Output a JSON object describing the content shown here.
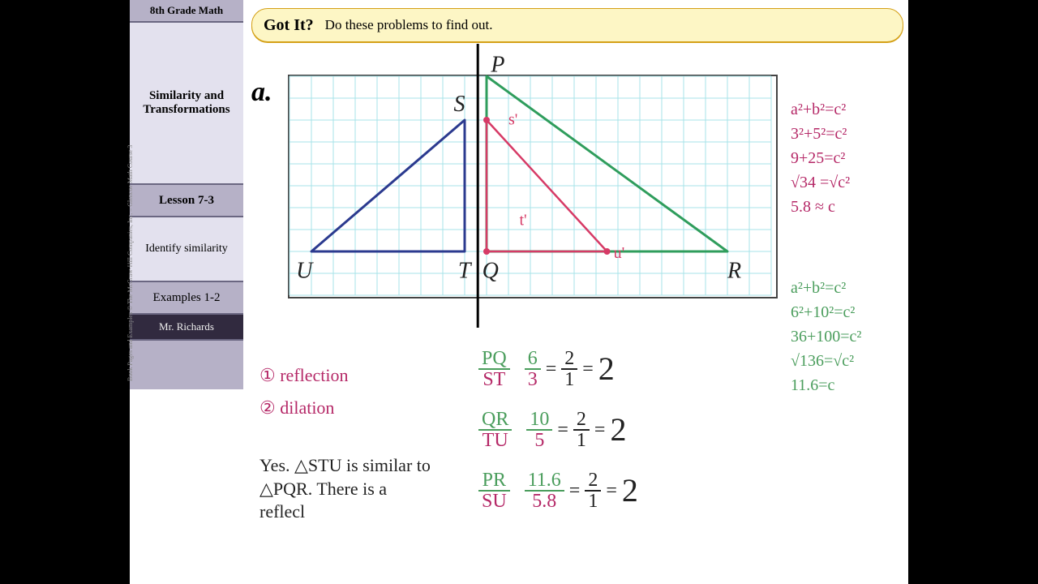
{
  "sidebar": {
    "title": "8th Grade Math",
    "topic": "Similarity and Transformations",
    "lesson": "Lesson 7-3",
    "objective": "Identify similarity",
    "examples": "Examples 1-2",
    "teacher": "Mr. Richards"
  },
  "copyright": "Book Pages and Examples © The McGraw-Hill Companies, Inc. – Glencoe Math Course 3",
  "banner": {
    "gotit": "Got It?",
    "prompt": "Do these problems to find out."
  },
  "problem_label": "a.",
  "grid": {
    "cols": 22,
    "rows": 10,
    "cell": 27,
    "grid_color": "#a7e3e9",
    "triangles": {
      "STU": {
        "color": "#2b3a8f",
        "width": 3,
        "points": [
          [
            8,
            8
          ],
          [
            8,
            2
          ],
          [
            1,
            8
          ]
        ],
        "labels": {
          "S": [
            7.5,
            1.6
          ],
          "T": [
            7.7,
            9.2
          ],
          "U": [
            0.3,
            9.2
          ]
        }
      },
      "PQR": {
        "color": "#2f9d5c",
        "width": 3,
        "points": [
          [
            9,
            0
          ],
          [
            9,
            8
          ],
          [
            20,
            8
          ]
        ],
        "labels": {
          "P": [
            9.2,
            -0.2
          ],
          "Q": [
            8.8,
            9.2
          ],
          "R": [
            20,
            9.2
          ]
        }
      },
      "prime": {
        "color": "#d63a66",
        "width": 2.5,
        "points": [
          [
            9,
            2
          ],
          [
            9,
            8
          ],
          [
            14.5,
            8
          ]
        ],
        "dots": [
          [
            9,
            2
          ],
          [
            9,
            8
          ],
          [
            14.5,
            8
          ]
        ],
        "labels": {
          "s'": [
            10,
            2.2
          ],
          "t'": [
            10.5,
            6.8
          ],
          "u'": [
            14.8,
            8.3
          ]
        }
      }
    },
    "reflection_line": {
      "x": 8.6,
      "extend": 40
    }
  },
  "annotations": {
    "step1": "① reflection",
    "step2": "② dilation",
    "answer": "Yes. △STU is similar to\n△PQR. There is a\nreflecl"
  },
  "ratios": {
    "r1": {
      "ln": "PQ",
      "ld": "ST",
      "vn": "6",
      "vd": "3",
      "sn": "2",
      "sd": "1"
    },
    "r2": {
      "ln": "QR",
      "ld": "TU",
      "vn": "10",
      "vd": "5",
      "sn": "2",
      "sd": "1"
    },
    "r3": {
      "ln": "PR",
      "ld": "SU",
      "vn": "11.6",
      "vd": "5.8",
      "sn": "2",
      "sd": "1"
    },
    "result": "2"
  },
  "pyth": {
    "red": [
      "a²+b²=c²",
      "3²+5²=c²",
      "9+25=c²",
      "√34 =√c²",
      "5.8 ≈ c"
    ],
    "green": [
      "a²+b²=c²",
      "6²+10²=c²",
      "36+100=c²",
      "√136=√c²",
      "11.6=c"
    ]
  },
  "label_fontsize": 28
}
